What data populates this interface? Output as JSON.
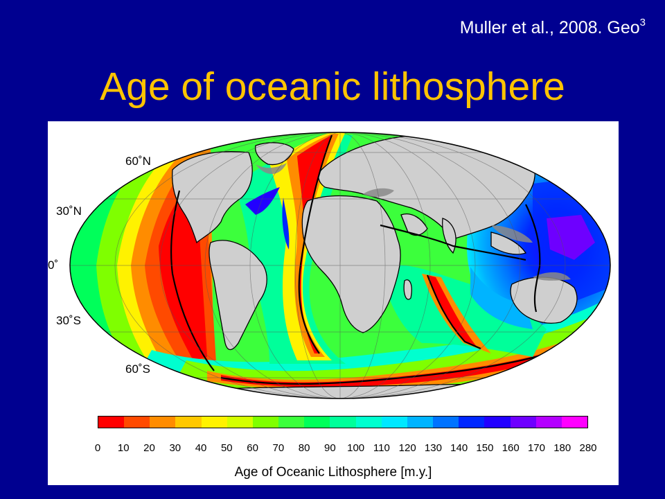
{
  "citation": {
    "text": "Muller et al., 2008. Geo",
    "superscript": "3"
  },
  "title": "Age of oceanic lithosphere",
  "map": {
    "projection": "Mollweide",
    "background_land_color": "#cfcfcf",
    "shelf_color": "#8a8a8a",
    "latitude_labels": [
      "60˚N",
      "30˚N",
      "0˚",
      "30˚S",
      "60˚S"
    ]
  },
  "colorbar": {
    "title": "Age of Oceanic Lithosphere [m.y.]",
    "tick_labels": [
      "0",
      "10",
      "20",
      "30",
      "40",
      "50",
      "60",
      "70",
      "80",
      "90",
      "100",
      "110",
      "120",
      "130",
      "140",
      "150",
      "160",
      "170",
      "180",
      "280"
    ],
    "colors": [
      "#ff0000",
      "#ff4a00",
      "#ff8c00",
      "#ffc800",
      "#fff200",
      "#d4ff00",
      "#7fff00",
      "#3cff3c",
      "#00ff5a",
      "#00ff9a",
      "#00ffcf",
      "#00e8ff",
      "#00b4ff",
      "#0073ff",
      "#0028ff",
      "#2200ff",
      "#6e00ff",
      "#b400ff",
      "#ff00ff"
    ]
  }
}
